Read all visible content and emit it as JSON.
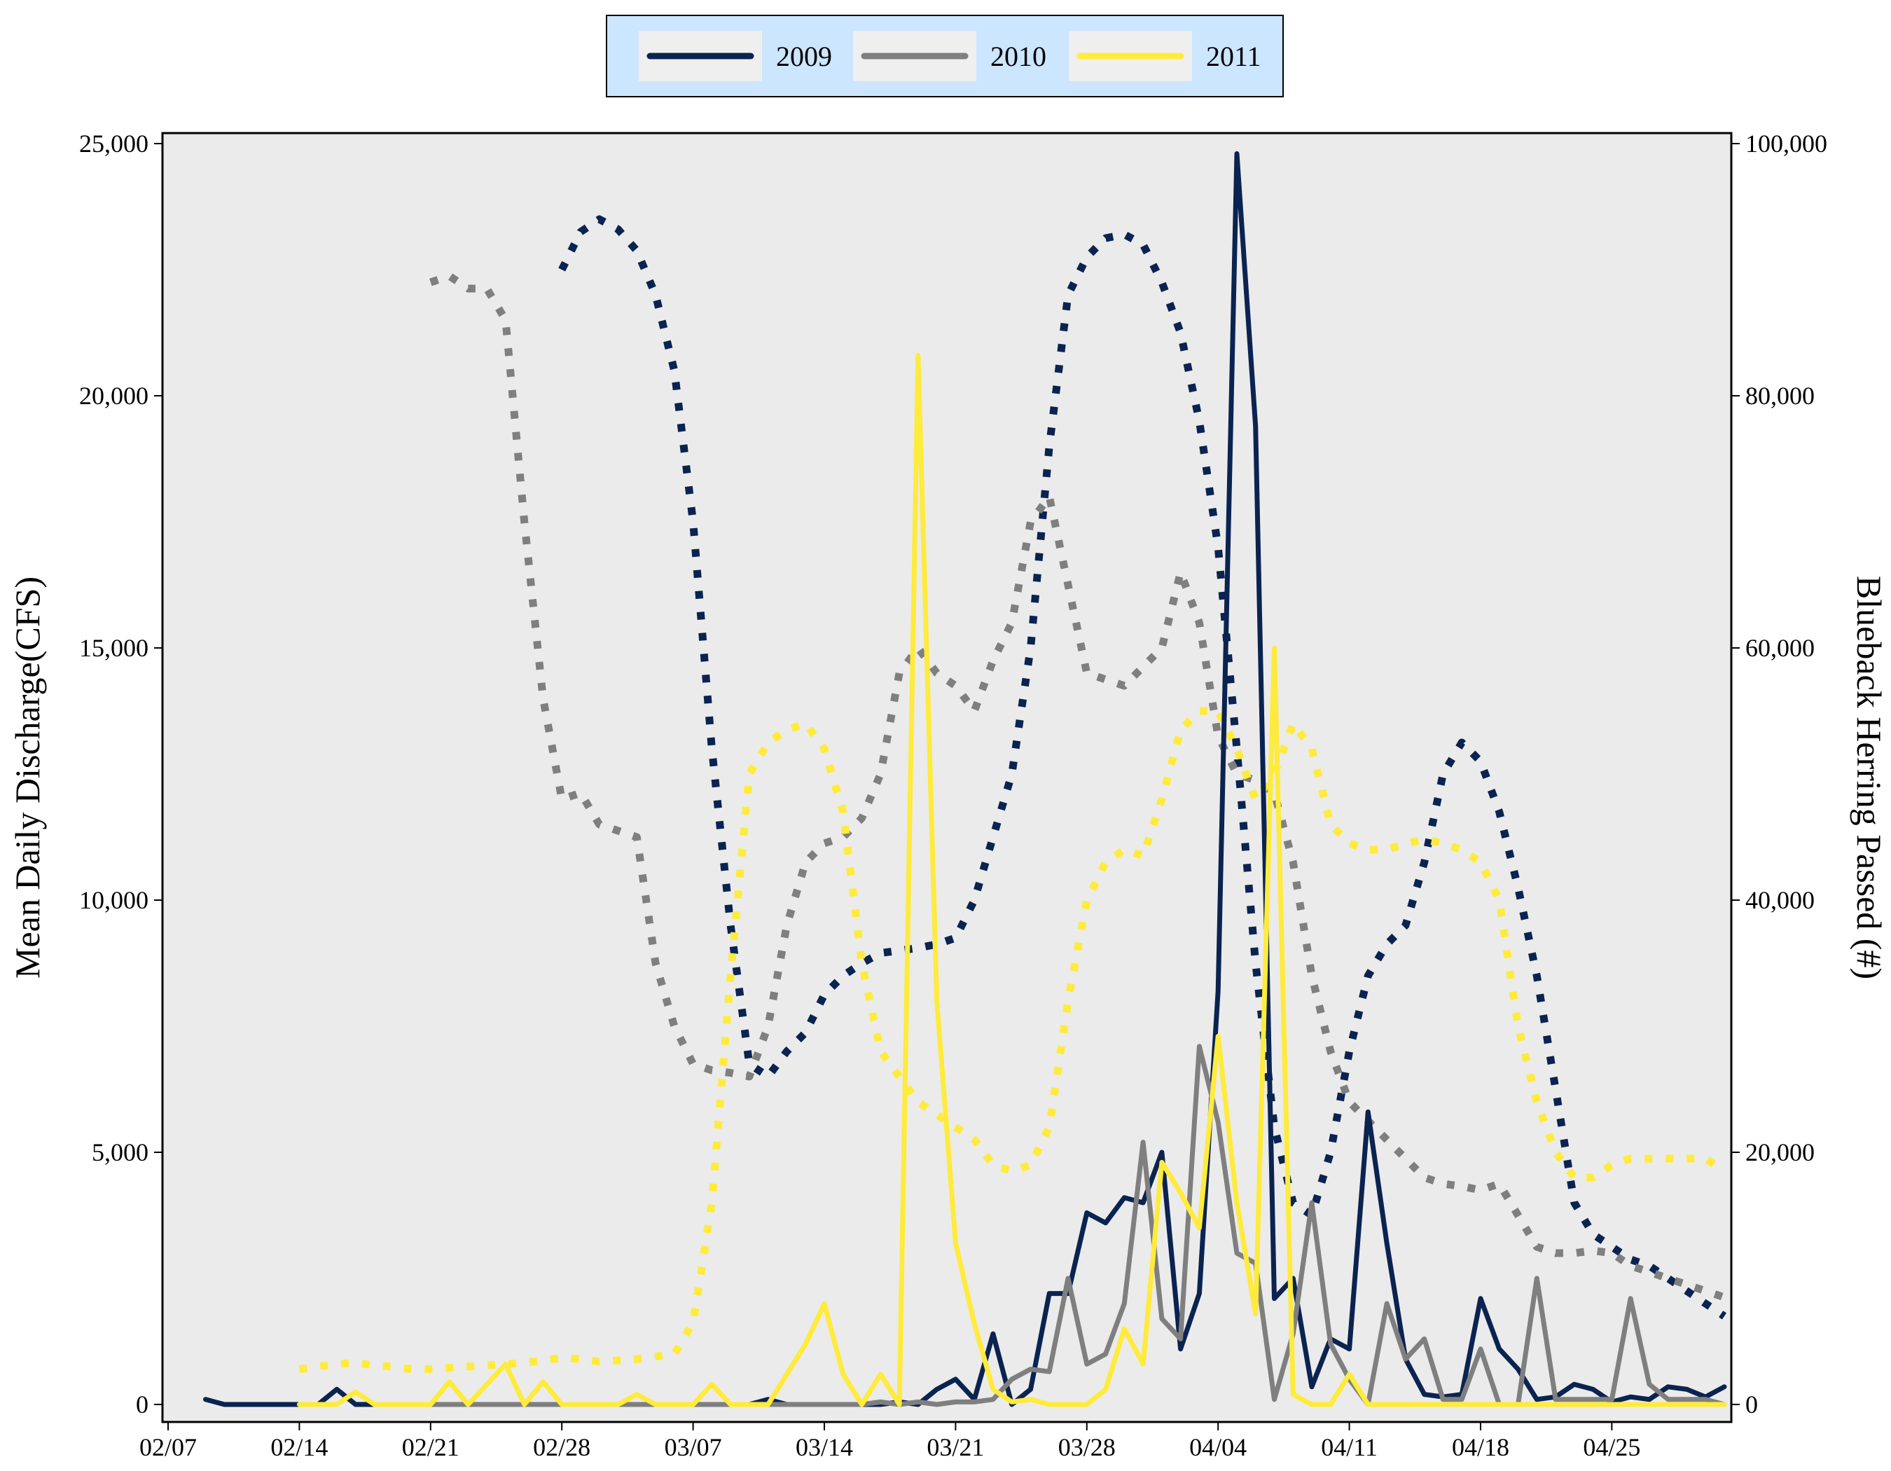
{
  "chart_data": {
    "type": "line",
    "title": "",
    "xlabel": "",
    "ylabel": "Mean Daily Discharge(CFS)",
    "y2label": "Blueback Herring Passed (#)",
    "x_tick_labels": [
      "02/07",
      "02/14",
      "02/21",
      "02/28",
      "03/07",
      "03/14",
      "03/21",
      "03/28",
      "04/04",
      "04/11",
      "04/18",
      "04/25"
    ],
    "y_tick_labels": [
      "0",
      "5,000",
      "10,000",
      "15,000",
      "20,000",
      "25,000"
    ],
    "y2_tick_labels": [
      "0",
      "20,000",
      "40,000",
      "60,000",
      "80,000",
      "100,000"
    ],
    "xlim_days": [
      0,
      83
    ],
    "ylim": [
      0,
      25000
    ],
    "y2lim": [
      0,
      100000
    ],
    "x_tick_days": [
      0,
      7,
      14,
      21,
      28,
      35,
      42,
      49,
      56,
      63,
      70,
      77
    ],
    "background": "#ebebeb",
    "legend": {
      "position": "top-center",
      "background": "#cce6ff",
      "entries": [
        "2009",
        "2010",
        "2011"
      ]
    },
    "series": [
      {
        "name": "2009",
        "color": "#0a2350",
        "passage_solid": {
          "x": [
            2,
            3,
            4,
            5,
            6,
            7,
            8,
            9,
            10,
            11,
            12,
            13,
            14,
            15,
            16,
            17,
            18,
            19,
            20,
            21,
            22,
            23,
            24,
            25,
            26,
            27,
            28,
            29,
            30,
            31,
            32,
            33,
            34,
            35,
            36,
            37,
            38,
            39,
            40,
            41,
            42,
            43,
            44,
            45,
            46,
            47,
            48,
            49,
            50,
            51,
            52,
            53,
            54,
            55,
            56,
            57,
            58,
            59,
            60,
            61,
            62,
            63,
            64,
            65,
            66,
            67,
            68,
            69,
            70,
            71,
            72,
            73,
            74,
            75,
            76,
            77,
            78,
            79,
            80,
            81,
            82,
            83
          ],
          "y": [
            100,
            0,
            0,
            0,
            0,
            0,
            0,
            300,
            0,
            0,
            0,
            0,
            0,
            0,
            0,
            0,
            0,
            0,
            0,
            0,
            0,
            0,
            0,
            0,
            0,
            0,
            0,
            0,
            0,
            0,
            100,
            0,
            0,
            0,
            0,
            0,
            0,
            50,
            0,
            300,
            500,
            100,
            1400,
            0,
            300,
            2200,
            2200,
            3800,
            3600,
            4100,
            4000,
            5000,
            1100,
            2200,
            8200,
            24800,
            19400,
            2100,
            2500,
            350,
            1300,
            1100,
            5800,
            3200,
            900,
            200,
            150,
            200,
            2100,
            1100,
            700,
            100,
            150,
            400,
            300,
            50,
            150,
            100,
            350,
            300,
            150,
            350
          ]
        },
        "discharge_dotted": {
          "x": [
            21,
            22,
            23,
            24,
            25,
            26,
            27,
            28,
            29,
            30,
            31,
            32,
            33,
            34,
            35,
            36,
            37,
            38,
            39,
            40,
            41,
            42,
            43,
            44,
            45,
            46,
            47,
            48,
            49,
            50,
            51,
            52,
            53,
            54,
            55,
            56,
            57,
            58,
            59,
            60,
            61,
            62,
            63,
            64,
            65,
            66,
            67,
            68,
            69,
            70,
            71,
            72,
            73,
            74,
            75,
            76,
            77,
            78,
            79,
            80,
            81,
            82,
            83
          ],
          "y": [
            90000,
            93000,
            94000,
            93200,
            91500,
            88000,
            82000,
            70000,
            52000,
            38000,
            27000,
            26000,
            28000,
            29500,
            32500,
            34000,
            35000,
            35800,
            36000,
            36200,
            36500,
            37000,
            40000,
            45000,
            50000,
            60000,
            76000,
            88000,
            91000,
            92500,
            92800,
            92000,
            89000,
            85000,
            78000,
            68000,
            52000,
            35000,
            22000,
            16000,
            15000,
            20000,
            28000,
            34000,
            36500,
            38000,
            43000,
            50000,
            52500,
            51000,
            47000,
            41000,
            34000,
            25000,
            16000,
            13500,
            12500,
            11500,
            11000,
            10000,
            9000,
            8000,
            7000
          ]
        }
      },
      {
        "name": "2010",
        "color": "#7f7f7f",
        "passage_solid": {
          "x": [
            14,
            15,
            16,
            17,
            18,
            19,
            20,
            21,
            22,
            23,
            24,
            25,
            26,
            27,
            28,
            29,
            30,
            31,
            32,
            33,
            34,
            35,
            36,
            37,
            38,
            39,
            40,
            41,
            42,
            43,
            44,
            45,
            46,
            47,
            48,
            49,
            50,
            51,
            52,
            53,
            54,
            55,
            56,
            57,
            58,
            59,
            60,
            61,
            62,
            63,
            64,
            65,
            66,
            67,
            68,
            69,
            70,
            71,
            72,
            73,
            74,
            75,
            76,
            77,
            78,
            79,
            80,
            81,
            82,
            83
          ],
          "y": [
            0,
            0,
            0,
            0,
            0,
            0,
            0,
            0,
            0,
            0,
            0,
            0,
            0,
            0,
            0,
            0,
            0,
            0,
            0,
            0,
            0,
            0,
            0,
            0,
            50,
            0,
            50,
            0,
            50,
            50,
            100,
            500,
            700,
            650,
            2500,
            800,
            1000,
            2000,
            5200,
            1700,
            1300,
            7100,
            5600,
            3000,
            2800,
            100,
            1400,
            4000,
            1200,
            500,
            0,
            2000,
            900,
            1300,
            100,
            100,
            1100,
            0,
            0,
            2500,
            100,
            100,
            100,
            100,
            2100,
            400,
            100,
            100,
            100,
            0
          ]
        },
        "discharge_dotted": {
          "x": [
            14,
            15,
            16,
            17,
            18,
            19,
            20,
            21,
            22,
            23,
            24,
            25,
            26,
            27,
            28,
            29,
            30,
            31,
            32,
            33,
            34,
            35,
            36,
            37,
            38,
            39,
            40,
            41,
            42,
            43,
            44,
            45,
            46,
            47,
            48,
            49,
            50,
            51,
            52,
            53,
            54,
            55,
            56,
            57,
            58,
            59,
            60,
            61,
            62,
            63,
            64,
            65,
            66,
            67,
            68,
            69,
            70,
            71,
            72,
            73,
            74,
            75,
            76,
            77,
            78,
            79,
            80,
            81,
            82,
            83
          ],
          "y": [
            89000,
            89500,
            88500,
            88500,
            86000,
            70000,
            56000,
            48000,
            48500,
            46000,
            45500,
            45000,
            35000,
            30000,
            27000,
            26500,
            26300,
            26000,
            30000,
            38000,
            43000,
            44500,
            45000,
            46500,
            50000,
            58000,
            60000,
            58000,
            57000,
            55000,
            59000,
            62000,
            70000,
            72000,
            65000,
            58000,
            57500,
            57000,
            58500,
            60000,
            66000,
            62000,
            53000,
            50000,
            49500,
            48500,
            43000,
            34000,
            28000,
            24000,
            22500,
            21000,
            19500,
            18000,
            17500,
            17300,
            17000,
            17500,
            15000,
            12500,
            12000,
            12000,
            12200,
            12000,
            11000,
            10500,
            10000,
            9500,
            9000,
            8500
          ]
        }
      },
      {
        "name": "2011",
        "color": "#ffeb3b",
        "passage_solid": {
          "x": [
            7,
            8,
            9,
            10,
            11,
            12,
            13,
            14,
            15,
            16,
            17,
            18,
            19,
            20,
            21,
            22,
            23,
            24,
            25,
            26,
            27,
            28,
            29,
            30,
            31,
            32,
            33,
            34,
            35,
            36,
            37,
            38,
            39,
            40,
            41,
            42,
            43,
            44,
            45,
            46,
            47,
            48,
            49,
            50,
            51,
            52,
            53,
            54,
            55,
            56,
            57,
            58,
            59,
            60,
            61,
            62,
            63,
            64,
            65,
            66,
            67,
            68,
            69,
            70,
            71,
            72,
            73,
            74,
            75,
            76,
            77,
            78,
            79,
            80,
            81,
            82,
            83
          ],
          "y": [
            0,
            0,
            0,
            250,
            0,
            0,
            0,
            0,
            450,
            0,
            400,
            800,
            0,
            450,
            0,
            0,
            0,
            0,
            200,
            0,
            0,
            0,
            400,
            0,
            0,
            0,
            600,
            1200,
            2000,
            600,
            0,
            600,
            0,
            20800,
            8000,
            3200,
            1600,
            300,
            50,
            100,
            0,
            0,
            0,
            300,
            1500,
            800,
            4800,
            4200,
            3500,
            7300,
            4000,
            1800,
            15000,
            200,
            0,
            0,
            600,
            0,
            0,
            0,
            0,
            0,
            0,
            0,
            0,
            0,
            0,
            0,
            0,
            0,
            0,
            0,
            0,
            0,
            0,
            0,
            0
          ]
        },
        "discharge_dotted": {
          "x": [
            7,
            8,
            9,
            10,
            11,
            12,
            13,
            14,
            15,
            16,
            17,
            18,
            19,
            20,
            21,
            22,
            23,
            24,
            25,
            26,
            27,
            28,
            29,
            30,
            31,
            32,
            33,
            34,
            35,
            36,
            37,
            38,
            39,
            40,
            41,
            42,
            43,
            44,
            45,
            46,
            47,
            48,
            49,
            50,
            51,
            52,
            53,
            54,
            55,
            56,
            57,
            58,
            59,
            60,
            61,
            62,
            63,
            64,
            65,
            66,
            67,
            68,
            69,
            70,
            71,
            72,
            73,
            74,
            75,
            76,
            77,
            78,
            79,
            80,
            81,
            82,
            83
          ],
          "y": [
            2800,
            3000,
            3200,
            3300,
            3100,
            3000,
            2800,
            2800,
            2900,
            3000,
            3100,
            3200,
            3300,
            3500,
            3700,
            3600,
            3400,
            3500,
            3600,
            3800,
            4000,
            6500,
            16000,
            34000,
            50000,
            52500,
            53500,
            54000,
            52000,
            47000,
            35000,
            28000,
            26000,
            24000,
            23000,
            22000,
            21000,
            19000,
            18500,
            19000,
            22000,
            32000,
            40000,
            43000,
            44000,
            43500,
            48000,
            53500,
            55000,
            55000,
            52000,
            48000,
            50000,
            54000,
            52000,
            46000,
            44500,
            44000,
            44000,
            44500,
            44800,
            44500,
            44000,
            43000,
            40000,
            30000,
            24000,
            20000,
            18000,
            18000,
            19000,
            19500,
            19500,
            19500,
            19500,
            19500,
            18500
          ]
        }
      }
    ]
  }
}
